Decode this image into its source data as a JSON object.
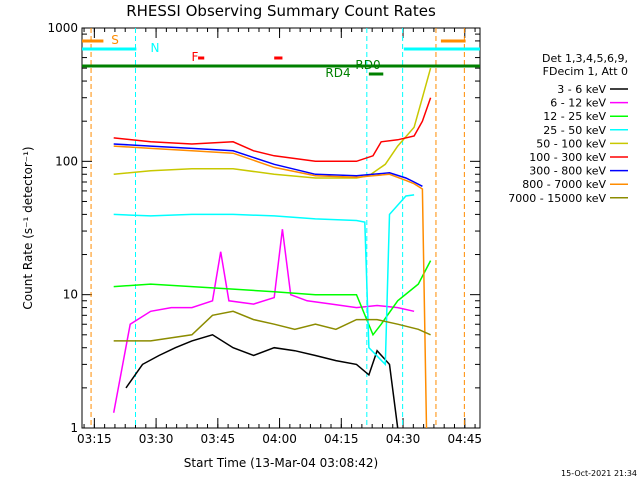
{
  "chart_data": {
    "type": "line",
    "title": "RHESSI Observing Summary Count Rates",
    "xlabel": "Start Time (13-Mar-04 03:08:42)",
    "ylabel": "Count Rate (s⁻¹ detector⁻¹)",
    "ylog": true,
    "ylim": [
      1,
      1000
    ],
    "xlim_minutes": [
      3.3,
      100
    ],
    "x_ticks": [
      "03:15",
      "03:30",
      "03:45",
      "04:00",
      "04:15",
      "04:30",
      "04:45"
    ],
    "y_ticks": [
      "1",
      "10",
      "100",
      "1000"
    ],
    "legend_header": [
      "Det 1,3,4,5,6,9,",
      "FDecim 1, Att 0"
    ],
    "date_stamp": "15-Oct-2021 21:34",
    "series": [
      {
        "name": "3 - 6 keV",
        "color": "#000000",
        "points": [
          [
            14,
            2
          ],
          [
            18,
            3
          ],
          [
            22,
            3.5
          ],
          [
            26,
            4
          ],
          [
            30,
            4.5
          ],
          [
            35,
            5
          ],
          [
            40,
            4
          ],
          [
            45,
            3.5
          ],
          [
            50,
            4
          ],
          [
            55,
            3.8
          ],
          [
            60,
            3.5
          ],
          [
            65,
            3.2
          ],
          [
            70,
            3
          ],
          [
            73,
            2.5
          ],
          [
            75,
            3.8
          ],
          [
            78,
            3
          ],
          [
            80,
            1
          ]
        ]
      },
      {
        "name": "6 - 12 keV",
        "color": "#ff00ff",
        "points": [
          [
            11,
            1.3
          ],
          [
            15,
            6
          ],
          [
            20,
            7.5
          ],
          [
            25,
            8
          ],
          [
            30,
            8
          ],
          [
            35,
            9
          ],
          [
            37,
            21
          ],
          [
            39,
            9
          ],
          [
            45,
            8.5
          ],
          [
            50,
            9.5
          ],
          [
            52,
            31
          ],
          [
            54,
            10
          ],
          [
            58,
            9
          ],
          [
            64,
            8.5
          ],
          [
            70,
            8
          ],
          [
            75,
            8.3
          ],
          [
            80,
            8
          ],
          [
            84,
            7.5
          ]
        ]
      },
      {
        "name": "12 - 25 keV",
        "color": "#00ff00",
        "points": [
          [
            11,
            11.5
          ],
          [
            20,
            12
          ],
          [
            30,
            11.5
          ],
          [
            40,
            11
          ],
          [
            50,
            10.5
          ],
          [
            60,
            10
          ],
          [
            70,
            10
          ],
          [
            74,
            5
          ],
          [
            76,
            6
          ],
          [
            80,
            9
          ],
          [
            85,
            12
          ],
          [
            88,
            18
          ]
        ]
      },
      {
        "name": "25 - 50 keV",
        "color": "#00ffff",
        "points": [
          [
            11,
            40
          ],
          [
            20,
            39
          ],
          [
            30,
            40
          ],
          [
            40,
            40
          ],
          [
            50,
            39
          ],
          [
            60,
            37
          ],
          [
            70,
            36
          ],
          [
            72,
            35
          ],
          [
            73,
            4
          ],
          [
            77,
            3
          ],
          [
            78,
            40
          ],
          [
            82,
            55
          ],
          [
            84,
            56
          ]
        ]
      },
      {
        "name": "50 - 100 keV",
        "color": "#c8c800",
        "points": [
          [
            11,
            80
          ],
          [
            20,
            85
          ],
          [
            30,
            88
          ],
          [
            40,
            88
          ],
          [
            50,
            80
          ],
          [
            60,
            75
          ],
          [
            70,
            75
          ],
          [
            73,
            78
          ],
          [
            77,
            95
          ],
          [
            80,
            130
          ],
          [
            84,
            180
          ],
          [
            86,
            300
          ],
          [
            88,
            500
          ]
        ]
      },
      {
        "name": "100 - 300 keV",
        "color": "#ff0000",
        "points": [
          [
            11,
            150
          ],
          [
            20,
            140
          ],
          [
            30,
            135
          ],
          [
            40,
            140
          ],
          [
            45,
            120
          ],
          [
            50,
            110
          ],
          [
            60,
            100
          ],
          [
            70,
            100
          ],
          [
            74,
            110
          ],
          [
            76,
            140
          ],
          [
            80,
            145
          ],
          [
            84,
            155
          ],
          [
            86,
            200
          ],
          [
            88,
            300
          ]
        ]
      },
      {
        "name": "300 - 800 keV",
        "color": "#0000ff",
        "points": [
          [
            11,
            135
          ],
          [
            20,
            130
          ],
          [
            30,
            125
          ],
          [
            40,
            120
          ],
          [
            50,
            95
          ],
          [
            60,
            80
          ],
          [
            70,
            78
          ],
          [
            74,
            80
          ],
          [
            78,
            82
          ],
          [
            82,
            75
          ],
          [
            84,
            70
          ],
          [
            86,
            65
          ]
        ]
      },
      {
        "name": "800 - 7000 keV",
        "color": "#ff8c00",
        "points": [
          [
            11,
            130
          ],
          [
            20,
            125
          ],
          [
            30,
            120
          ],
          [
            40,
            115
          ],
          [
            50,
            90
          ],
          [
            60,
            78
          ],
          [
            70,
            76
          ],
          [
            74,
            78
          ],
          [
            78,
            80
          ],
          [
            82,
            72
          ],
          [
            84,
            68
          ],
          [
            86,
            62
          ],
          [
            87,
            1
          ]
        ]
      },
      {
        "name": "7000 - 15000 keV",
        "color": "#8c8c00",
        "points": [
          [
            11,
            4.5
          ],
          [
            20,
            4.5
          ],
          [
            30,
            5
          ],
          [
            35,
            7
          ],
          [
            40,
            7.5
          ],
          [
            45,
            6.5
          ],
          [
            50,
            6
          ],
          [
            55,
            5.5
          ],
          [
            60,
            6
          ],
          [
            65,
            5.5
          ],
          [
            70,
            6.5
          ],
          [
            75,
            6.5
          ],
          [
            80,
            6
          ],
          [
            85,
            5.5
          ],
          [
            88,
            5
          ]
        ]
      }
    ],
    "flags": [
      {
        "label": "S",
        "color": "#ff8c00"
      },
      {
        "label": "N",
        "color": "#00ffff"
      },
      {
        "label": "F",
        "color": "#ff0000"
      },
      {
        "label": "RD0",
        "color": "#008000"
      },
      {
        "label": "RD4",
        "color": "#008000"
      }
    ],
    "flag_intervals": [
      {
        "color": "#ff8c00",
        "minutes": [
          [
            3.3,
            8.5
          ],
          [
            90.5,
            96.5
          ]
        ]
      },
      {
        "color": "#00ffff",
        "minutes": [
          [
            3.3,
            16.5
          ],
          [
            81.5,
            100
          ]
        ]
      },
      {
        "color": "#ff0000",
        "minutes": [
          [
            31.5,
            33
          ],
          [
            50,
            52
          ]
        ]
      },
      {
        "color": "#008000",
        "minutes": [
          [
            3.3,
            100
          ]
        ]
      },
      {
        "color": "#008000",
        "minutes": [
          [
            73,
            76.5
          ]
        ]
      }
    ],
    "vlines": [
      {
        "color": "#ff8c00",
        "minute": 5.5
      },
      {
        "color": "#00ffff",
        "minute": 16.3
      },
      {
        "color": "#00ffff",
        "minute": 72.5
      },
      {
        "color": "#00ffff",
        "minute": 81.2
      },
      {
        "color": "#ff8c00",
        "minute": 89.3
      },
      {
        "color": "#ff8c00",
        "minute": 96.2
      }
    ]
  }
}
